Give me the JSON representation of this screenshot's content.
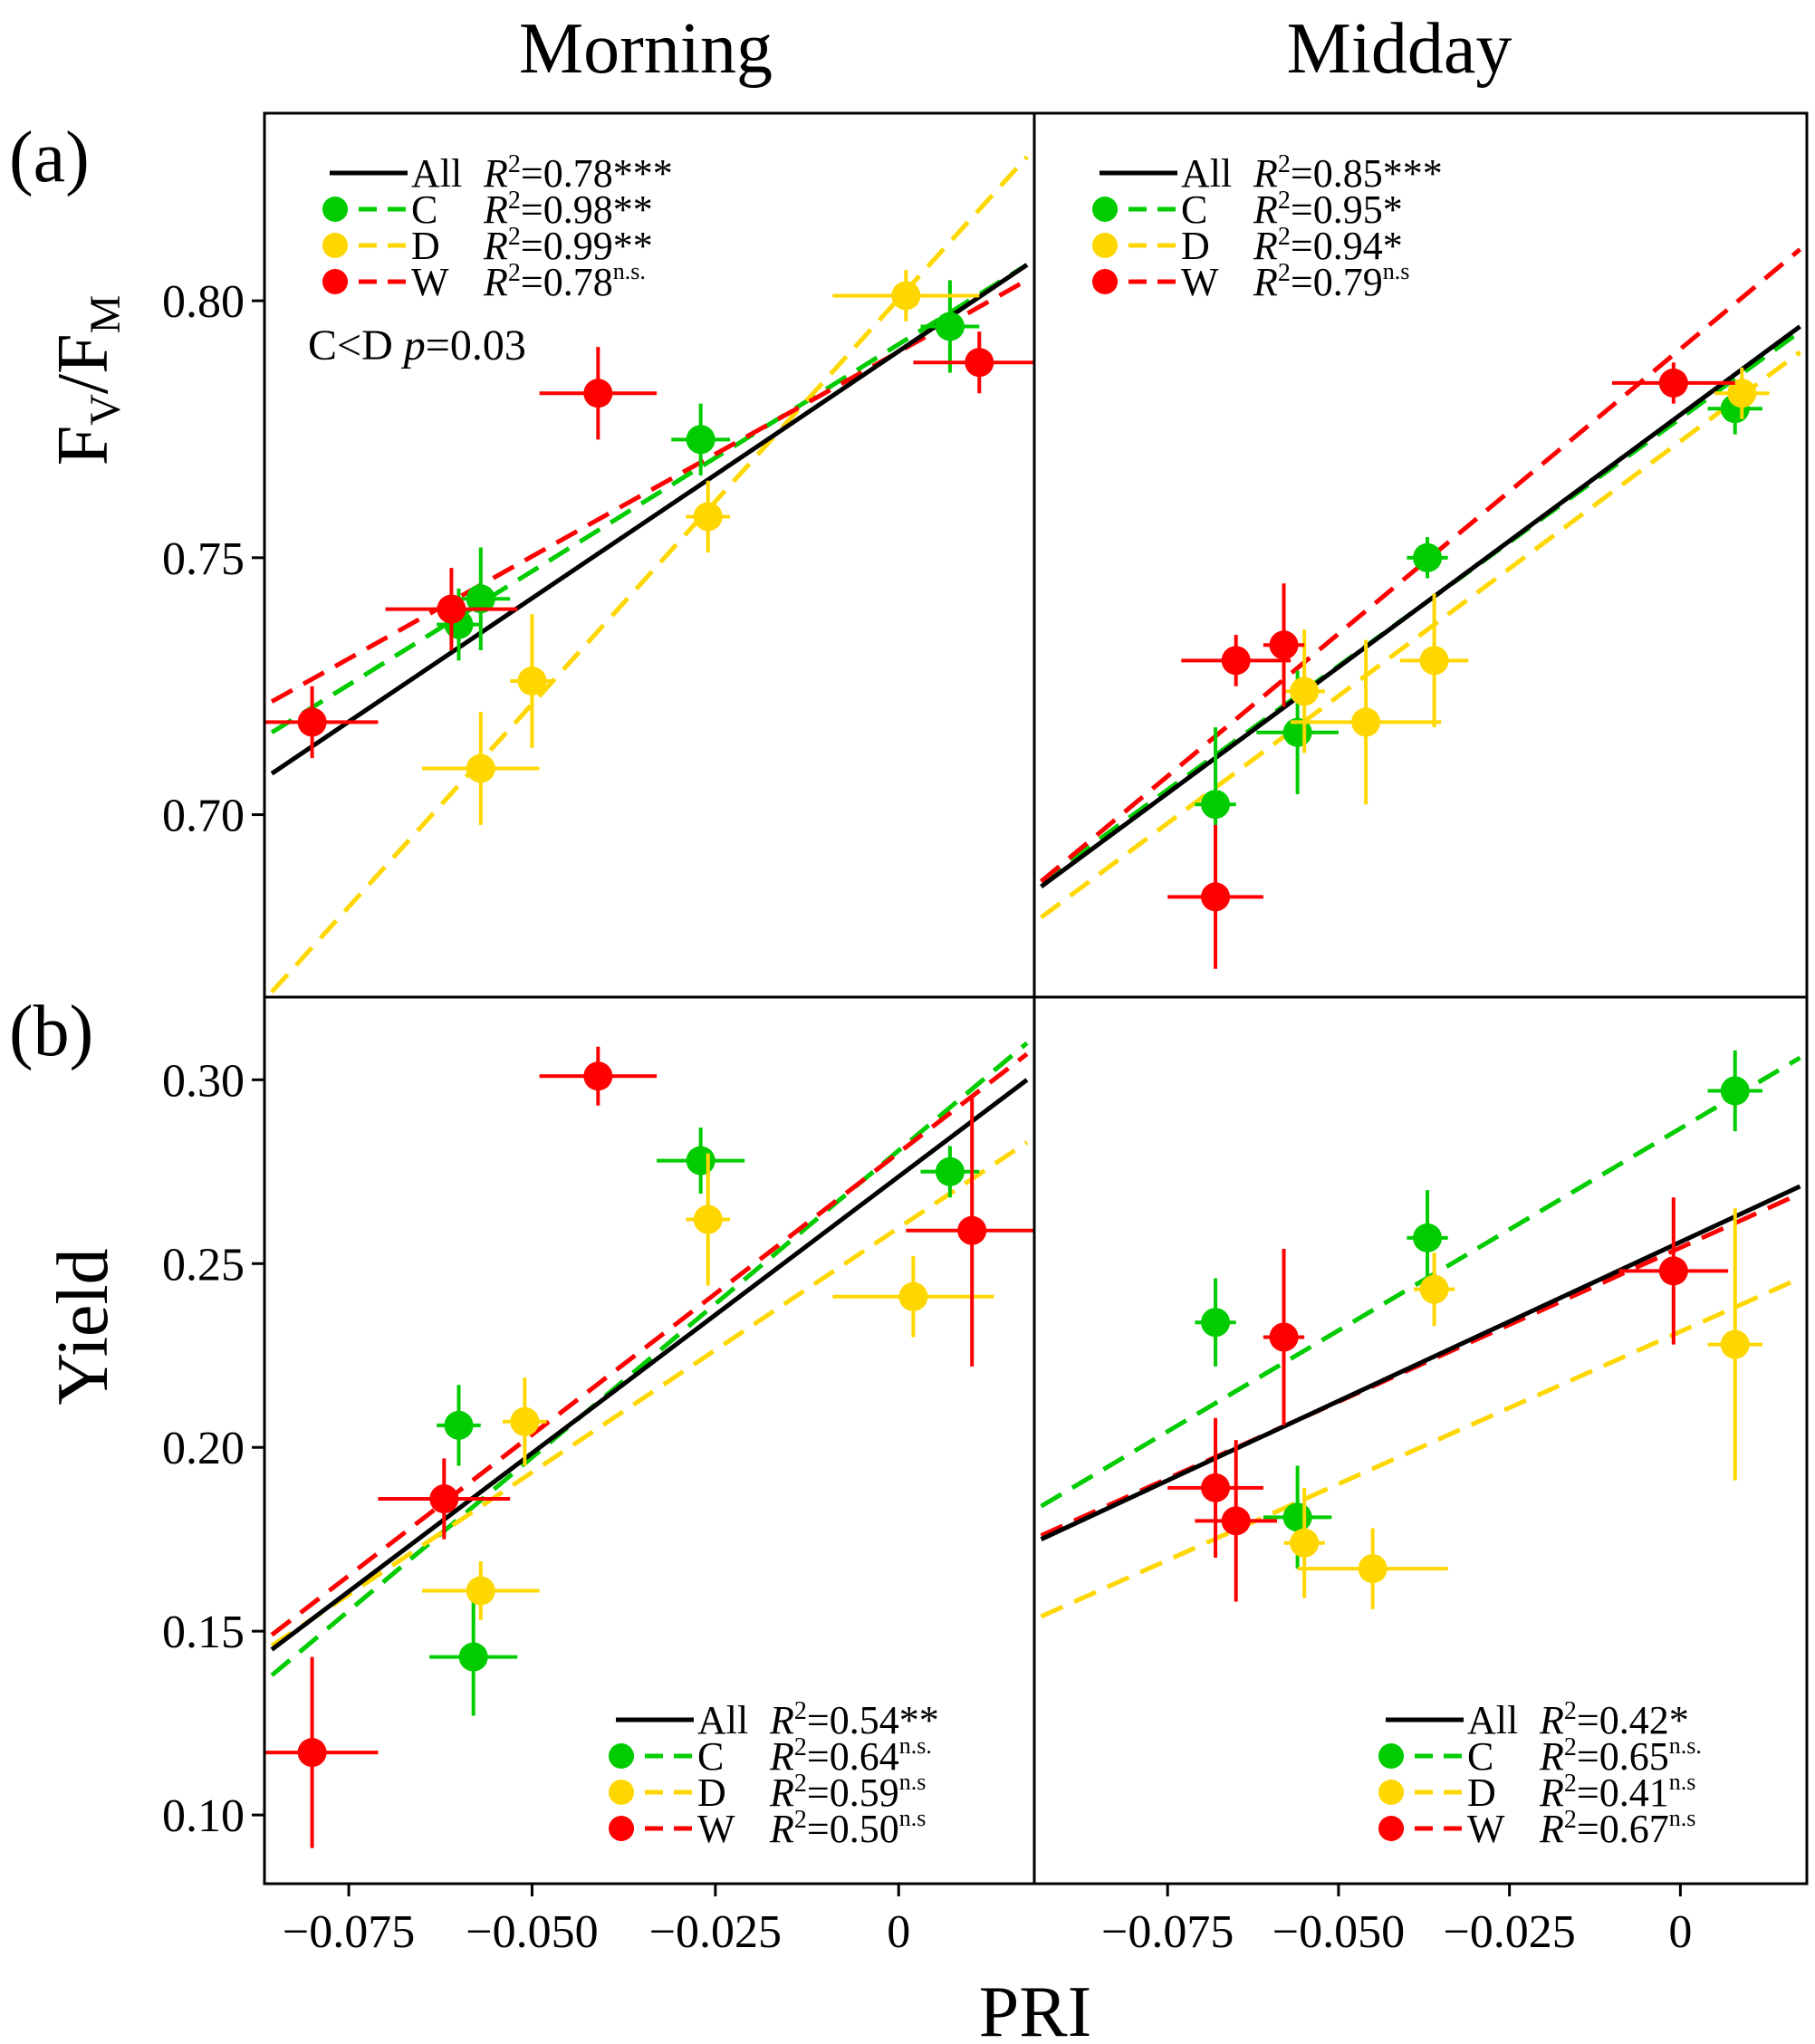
{
  "figure": {
    "column_titles": [
      "Morning",
      "Midday"
    ],
    "row_labels": [
      "(a)",
      "(b)"
    ],
    "xlabel": "PRI",
    "ylabel_top_main": "F",
    "ylabel_top_sub1": "V",
    "ylabel_top_mid": "/F",
    "ylabel_top_sub2": "M",
    "ylabel_bottom": "Yield",
    "xticks": [
      "−0.075",
      "−0.050",
      "−0.025",
      "0"
    ],
    "yticks_top": [
      "0.70",
      "0.75",
      "0.80"
    ],
    "yticks_bottom": [
      "0.10",
      "0.15",
      "0.20",
      "0.25",
      "0.30"
    ],
    "comparison_note_prefix": "C<D ",
    "comparison_note_p": "p",
    "comparison_note_value": "=0.03",
    "colors": {
      "C": "#00cc00",
      "D": "#ffd700",
      "W": "#ff0000",
      "All": "#000000"
    }
  },
  "chart_data": [
    {
      "panel": "a-morning",
      "type": "scatter",
      "title": "Morning",
      "xlabel": "PRI",
      "ylabel": "FV/FM",
      "xlim": [
        -0.0865,
        0.0185
      ],
      "ylim": [
        0.6645,
        0.8365
      ],
      "legend_position": "top-left",
      "legend": [
        {
          "key": "All",
          "label": "All",
          "r2": "0.78",
          "sig": "***",
          "sup": false
        },
        {
          "key": "C",
          "label": "C",
          "r2": "0.98",
          "sig": "**",
          "sup": false
        },
        {
          "key": "D",
          "label": "D",
          "r2": "0.99",
          "sig": "**",
          "sup": false
        },
        {
          "key": "W",
          "label": "W",
          "r2": "0.78",
          "sig": "n.s.",
          "sup": true
        }
      ],
      "series": [
        {
          "name": "C",
          "points": [
            {
              "x": -0.06,
              "y": 0.737,
              "xerr": 0.003,
              "yerr": 0.007
            },
            {
              "x": -0.057,
              "y": 0.742,
              "xerr": 0.004,
              "yerr": 0.01
            },
            {
              "x": -0.027,
              "y": 0.773,
              "xerr": 0.004,
              "yerr": 0.007
            },
            {
              "x": 0.007,
              "y": 0.795,
              "xerr": 0.004,
              "yerr": 0.009
            }
          ]
        },
        {
          "name": "D",
          "points": [
            {
              "x": -0.057,
              "y": 0.709,
              "xerr": 0.008,
              "yerr": 0.011
            },
            {
              "x": -0.05,
              "y": 0.726,
              "xerr": 0.003,
              "yerr": 0.013
            },
            {
              "x": -0.026,
              "y": 0.758,
              "xerr": 0.003,
              "yerr": 0.007
            },
            {
              "x": 0.001,
              "y": 0.801,
              "xerr": 0.01,
              "yerr": 0.005
            }
          ]
        },
        {
          "name": "W",
          "points": [
            {
              "x": -0.08,
              "y": 0.718,
              "xerr": 0.009,
              "yerr": 0.007
            },
            {
              "x": -0.061,
              "y": 0.74,
              "xerr": 0.009,
              "yerr": 0.008
            },
            {
              "x": -0.041,
              "y": 0.782,
              "xerr": 0.008,
              "yerr": 0.009
            },
            {
              "x": 0.011,
              "y": 0.788,
              "xerr": 0.009,
              "yerr": 0.006
            }
          ]
        }
      ],
      "fits": [
        {
          "name": "All",
          "x": [
            -0.0855,
            0.0175
          ],
          "y": [
            0.708,
            0.807
          ]
        },
        {
          "name": "C",
          "x": [
            -0.0855,
            0.0175
          ],
          "y": [
            0.716,
            0.807
          ]
        },
        {
          "name": "D",
          "x": [
            -0.0855,
            0.0175
          ],
          "y": [
            0.6655,
            0.828
          ]
        },
        {
          "name": "W",
          "x": [
            -0.0855,
            0.0175
          ],
          "y": [
            0.722,
            0.804
          ]
        }
      ]
    },
    {
      "panel": "a-midday",
      "type": "scatter",
      "title": "Midday",
      "xlabel": "PRI",
      "ylabel": "FV/FM",
      "xlim": [
        -0.0945,
        0.0185
      ],
      "ylim": [
        0.6645,
        0.8365
      ],
      "legend_position": "top-left",
      "legend": [
        {
          "key": "All",
          "label": "All",
          "r2": "0.85",
          "sig": "***",
          "sup": false
        },
        {
          "key": "C",
          "label": "C",
          "r2": "0.95",
          "sig": "*",
          "sup": false
        },
        {
          "key": "D",
          "label": "D",
          "r2": "0.94",
          "sig": "*",
          "sup": false
        },
        {
          "key": "W",
          "label": "W",
          "r2": "0.79",
          "sig": "n.s",
          "sup": true
        }
      ],
      "series": [
        {
          "name": "C",
          "points": [
            {
              "x": -0.068,
              "y": 0.702,
              "xerr": 0.003,
              "yerr": 0.015
            },
            {
              "x": -0.056,
              "y": 0.716,
              "xerr": 0.006,
              "yerr": 0.012
            },
            {
              "x": -0.037,
              "y": 0.75,
              "xerr": 0.003,
              "yerr": 0.004
            },
            {
              "x": 0.008,
              "y": 0.779,
              "xerr": 0.004,
              "yerr": 0.005
            }
          ]
        },
        {
          "name": "D",
          "points": [
            {
              "x": -0.055,
              "y": 0.724,
              "xerr": 0.003,
              "yerr": 0.012
            },
            {
              "x": -0.046,
              "y": 0.718,
              "xerr": 0.011,
              "yerr": 0.016
            },
            {
              "x": -0.036,
              "y": 0.73,
              "xerr": 0.005,
              "yerr": 0.013
            },
            {
              "x": 0.009,
              "y": 0.782,
              "xerr": 0.004,
              "yerr": 0.005
            }
          ]
        },
        {
          "name": "W",
          "points": [
            {
              "x": -0.068,
              "y": 0.684,
              "xerr": 0.007,
              "yerr": 0.014
            },
            {
              "x": -0.065,
              "y": 0.73,
              "xerr": 0.008,
              "yerr": 0.005
            },
            {
              "x": -0.058,
              "y": 0.733,
              "xerr": 0.003,
              "yerr": 0.012
            },
            {
              "x": -0.001,
              "y": 0.784,
              "xerr": 0.009,
              "yerr": 0.004
            }
          ]
        }
      ],
      "fits": [
        {
          "name": "All",
          "x": [
            -0.0935,
            0.0175
          ],
          "y": [
            0.686,
            0.795
          ]
        },
        {
          "name": "C",
          "x": [
            -0.0935,
            0.0175
          ],
          "y": [
            0.687,
            0.794
          ]
        },
        {
          "name": "D",
          "x": [
            -0.0935,
            0.0175
          ],
          "y": [
            0.68,
            0.79
          ]
        },
        {
          "name": "W",
          "x": [
            -0.0935,
            0.0175
          ],
          "y": [
            0.687,
            0.81
          ]
        }
      ]
    },
    {
      "panel": "b-morning",
      "type": "scatter",
      "title": "Morning",
      "xlabel": "PRI",
      "ylabel": "Yield",
      "xlim": [
        -0.0865,
        0.0185
      ],
      "ylim": [
        0.0813,
        0.3225
      ],
      "legend_position": "bottom-right",
      "legend": [
        {
          "key": "All",
          "label": "All",
          "r2": "0.54",
          "sig": "**",
          "sup": false
        },
        {
          "key": "C",
          "label": "C",
          "r2": "0.64",
          "sig": "n.s.",
          "sup": true
        },
        {
          "key": "D",
          "label": "D",
          "r2": "0.59",
          "sig": "n.s",
          "sup": true
        },
        {
          "key": "W",
          "label": "W",
          "r2": "0.50",
          "sig": "n.s",
          "sup": true
        }
      ],
      "series": [
        {
          "name": "C",
          "points": [
            {
              "x": -0.06,
              "y": 0.206,
              "xerr": 0.003,
              "yerr": 0.011
            },
            {
              "x": -0.058,
              "y": 0.143,
              "xerr": 0.006,
              "yerr": 0.016
            },
            {
              "x": -0.027,
              "y": 0.278,
              "xerr": 0.006,
              "yerr": 0.009
            },
            {
              "x": 0.007,
              "y": 0.275,
              "xerr": 0.004,
              "yerr": 0.007
            }
          ]
        },
        {
          "name": "D",
          "points": [
            {
              "x": -0.057,
              "y": 0.161,
              "xerr": 0.008,
              "yerr": 0.008
            },
            {
              "x": -0.051,
              "y": 0.207,
              "xerr": 0.003,
              "yerr": 0.012
            },
            {
              "x": -0.026,
              "y": 0.262,
              "xerr": 0.003,
              "yerr": 0.018
            },
            {
              "x": 0.002,
              "y": 0.241,
              "xerr": 0.011,
              "yerr": 0.011
            }
          ]
        },
        {
          "name": "W",
          "points": [
            {
              "x": -0.08,
              "y": 0.117,
              "xerr": 0.009,
              "yerr": 0.026
            },
            {
              "x": -0.062,
              "y": 0.186,
              "xerr": 0.009,
              "yerr": 0.011
            },
            {
              "x": -0.041,
              "y": 0.301,
              "xerr": 0.008,
              "yerr": 0.008
            },
            {
              "x": 0.01,
              "y": 0.259,
              "xerr": 0.009,
              "yerr": 0.037
            }
          ]
        }
      ],
      "fits": [
        {
          "name": "All",
          "x": [
            -0.0855,
            0.0175
          ],
          "y": [
            0.145,
            0.3
          ]
        },
        {
          "name": "C",
          "x": [
            -0.0855,
            0.0175
          ],
          "y": [
            0.138,
            0.31
          ]
        },
        {
          "name": "D",
          "x": [
            -0.0855,
            0.0175
          ],
          "y": [
            0.146,
            0.283
          ]
        },
        {
          "name": "W",
          "x": [
            -0.0855,
            0.0175
          ],
          "y": [
            0.149,
            0.307
          ]
        }
      ]
    },
    {
      "panel": "b-midday",
      "type": "scatter",
      "title": "Midday",
      "xlabel": "PRI",
      "ylabel": "Yield",
      "xlim": [
        -0.0945,
        0.0185
      ],
      "ylim": [
        0.0813,
        0.3225
      ],
      "legend_position": "bottom-right",
      "legend": [
        {
          "key": "All",
          "label": "All",
          "r2": "0.42",
          "sig": "*",
          "sup": false
        },
        {
          "key": "C",
          "label": "C",
          "r2": "0.65",
          "sig": "n.s.",
          "sup": true
        },
        {
          "key": "D",
          "label": "D",
          "r2": "0.41",
          "sig": "n.s",
          "sup": true
        },
        {
          "key": "W",
          "label": "W",
          "r2": "0.67",
          "sig": "n.s",
          "sup": true
        }
      ],
      "series": [
        {
          "name": "C",
          "points": [
            {
              "x": -0.068,
              "y": 0.234,
              "xerr": 0.003,
              "yerr": 0.012
            },
            {
              "x": -0.056,
              "y": 0.181,
              "xerr": 0.005,
              "yerr": 0.014
            },
            {
              "x": -0.037,
              "y": 0.257,
              "xerr": 0.003,
              "yerr": 0.013
            },
            {
              "x": 0.008,
              "y": 0.297,
              "xerr": 0.004,
              "yerr": 0.011
            }
          ]
        },
        {
          "name": "D",
          "points": [
            {
              "x": -0.055,
              "y": 0.174,
              "xerr": 0.003,
              "yerr": 0.015
            },
            {
              "x": -0.045,
              "y": 0.167,
              "xerr": 0.011,
              "yerr": 0.011
            },
            {
              "x": -0.036,
              "y": 0.243,
              "xerr": 0.003,
              "yerr": 0.01
            },
            {
              "x": 0.008,
              "y": 0.228,
              "xerr": 0.004,
              "yerr": 0.037
            }
          ]
        },
        {
          "name": "W",
          "points": [
            {
              "x": -0.068,
              "y": 0.189,
              "xerr": 0.007,
              "yerr": 0.019
            },
            {
              "x": -0.065,
              "y": 0.18,
              "xerr": 0.006,
              "yerr": 0.022
            },
            {
              "x": -0.058,
              "y": 0.23,
              "xerr": 0.003,
              "yerr": 0.024
            },
            {
              "x": -0.001,
              "y": 0.248,
              "xerr": 0.008,
              "yerr": 0.02
            }
          ]
        }
      ],
      "fits": [
        {
          "name": "All",
          "x": [
            -0.0935,
            0.0175
          ],
          "y": [
            0.175,
            0.271
          ]
        },
        {
          "name": "C",
          "x": [
            -0.0935,
            0.0175
          ],
          "y": [
            0.184,
            0.306
          ]
        },
        {
          "name": "D",
          "x": [
            -0.0935,
            0.0175
          ],
          "y": [
            0.154,
            0.246
          ]
        },
        {
          "name": "W",
          "x": [
            -0.0935,
            0.0175
          ],
          "y": [
            0.176,
            0.269
          ]
        }
      ]
    }
  ]
}
